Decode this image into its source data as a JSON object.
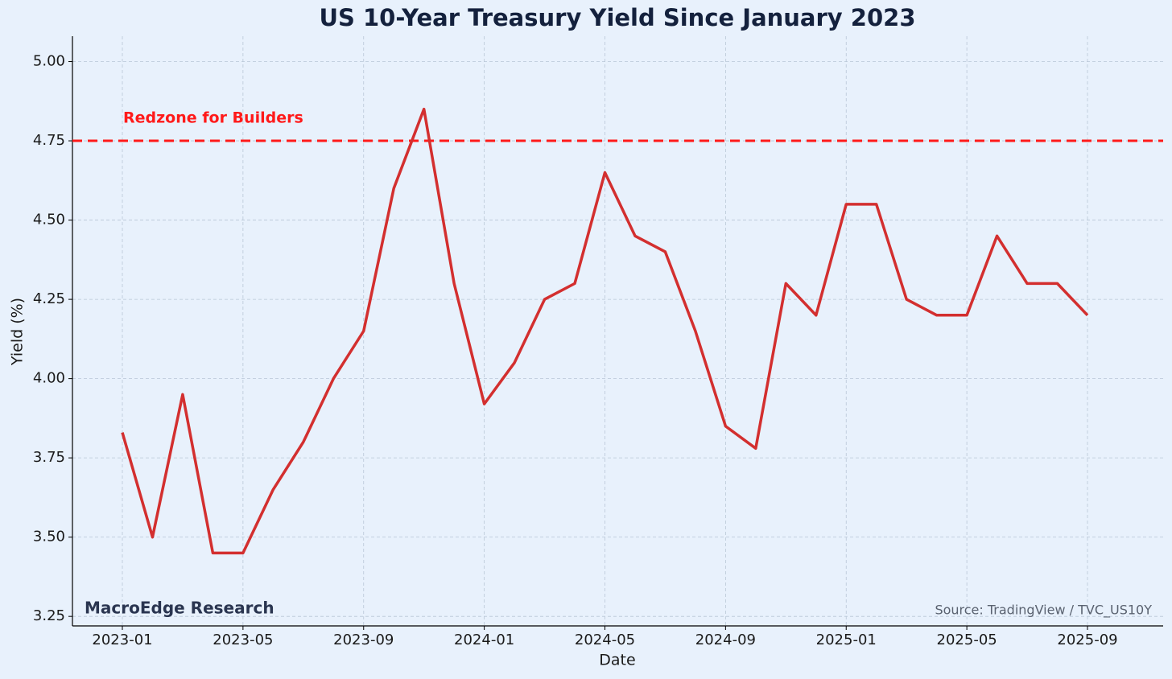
{
  "chart_data": {
    "type": "line",
    "title": "US 10-Year Treasury Yield Since January 2023",
    "x_label": "Date",
    "y_label": "Yield (%)",
    "categories": [
      "2023-01",
      "2023-02",
      "2023-03",
      "2023-04",
      "2023-05",
      "2023-06",
      "2023-07",
      "2023-08",
      "2023-09",
      "2023-10",
      "2023-11",
      "2023-12",
      "2024-01",
      "2024-02",
      "2024-03",
      "2024-04",
      "2024-05",
      "2024-06",
      "2024-07",
      "2024-08",
      "2024-09",
      "2024-10",
      "2024-11",
      "2024-12",
      "2025-01",
      "2025-02",
      "2025-03",
      "2025-04",
      "2025-05",
      "2025-06",
      "2025-07",
      "2025-08",
      "2025-09"
    ],
    "series": [
      {
        "name": "US10Y",
        "color": "#d32f2f",
        "values": [
          3.83,
          3.5,
          3.95,
          3.45,
          3.45,
          3.65,
          3.8,
          4.0,
          4.15,
          4.6,
          4.85,
          4.3,
          3.92,
          4.05,
          4.25,
          4.3,
          4.65,
          4.45,
          4.4,
          4.15,
          3.85,
          3.78,
          4.3,
          4.2,
          4.55,
          4.55,
          4.25,
          4.2,
          4.2,
          4.45,
          4.3,
          4.3,
          4.2
        ]
      }
    ],
    "xticks": [
      "2023-01",
      "2023-05",
      "2023-09",
      "2024-01",
      "2024-05",
      "2024-09",
      "2025-01",
      "2025-05",
      "2025-09"
    ],
    "ylim": [
      3.22,
      5.08
    ],
    "yticks": [
      {
        "value": 3.25,
        "label": "3.25"
      },
      {
        "value": 3.5,
        "label": "3.50"
      },
      {
        "value": 3.75,
        "label": "3.75"
      },
      {
        "value": 4,
        "label": "4.00"
      },
      {
        "value": 4.25,
        "label": "4.25"
      },
      {
        "value": 4.5,
        "label": "4.50"
      },
      {
        "value": 4.75,
        "label": "4.75"
      },
      {
        "value": 5,
        "label": "5.00"
      }
    ],
    "grid": true,
    "reference_line": {
      "value": 4.75,
      "label": "Redzone for Builders",
      "color": "#ff1a1a"
    },
    "watermark": "MacroEdge Research",
    "source": "Source: TradingView / TVC_US10Y"
  }
}
